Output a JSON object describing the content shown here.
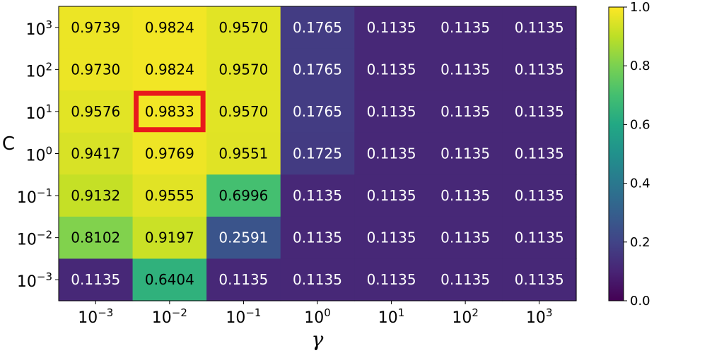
{
  "chart_data": {
    "type": "heatmap",
    "title": "",
    "xlabel": "γ",
    "ylabel": "C",
    "x_ticks": [
      "10^-3",
      "10^-2",
      "10^-1",
      "10^0",
      "10^1",
      "10^2",
      "10^3"
    ],
    "y_ticks": [
      "10^3",
      "10^2",
      "10^1",
      "10^0",
      "10^-1",
      "10^-2",
      "10^-3"
    ],
    "values": [
      [
        "0.9739",
        "0.9824",
        "0.9570",
        "0.1765",
        "0.1135",
        "0.1135",
        "0.1135"
      ],
      [
        "0.9730",
        "0.9824",
        "0.9570",
        "0.1765",
        "0.1135",
        "0.1135",
        "0.1135"
      ],
      [
        "0.9576",
        "0.9833",
        "0.9570",
        "0.1765",
        "0.1135",
        "0.1135",
        "0.1135"
      ],
      [
        "0.9417",
        "0.9769",
        "0.9551",
        "0.1725",
        "0.1135",
        "0.1135",
        "0.1135"
      ],
      [
        "0.9132",
        "0.9555",
        "0.6996",
        "0.1135",
        "0.1135",
        "0.1135",
        "0.1135"
      ],
      [
        "0.8102",
        "0.9197",
        "0.2591",
        "0.1135",
        "0.1135",
        "0.1135",
        "0.1135"
      ],
      [
        "0.1135",
        "0.6404",
        "0.1135",
        "0.1135",
        "0.1135",
        "0.1135",
        "0.1135"
      ]
    ],
    "highlight": {
      "row": 2,
      "col": 1,
      "color": "#e8191c"
    },
    "colormap": "viridis",
    "colorbar": {
      "vmin": 0.0,
      "vmax": 1.0,
      "ticks": [
        "0.0",
        "0.2",
        "0.4",
        "0.6",
        "0.8",
        "1.0"
      ]
    }
  }
}
